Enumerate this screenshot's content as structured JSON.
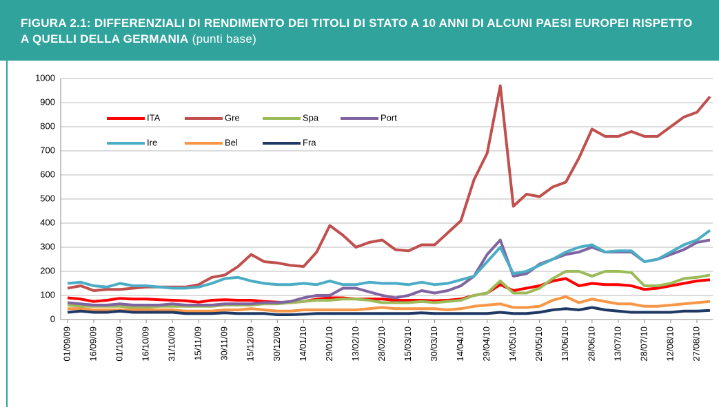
{
  "chart_data": {
    "type": "line",
    "title": "FIGURA 2.1: DIFFERENZIALI DI RENDIMENTO DEI TITOLI DI STATO A 10 ANNI DI ALCUNI PAESI EUROPEI RISPETTO A QUELLI DELLA GERMANIA",
    "subtitle": "(punti base)",
    "categories": [
      "01/09/09",
      null,
      "16/09/09",
      null,
      "01/10/09",
      null,
      "16/10/09",
      null,
      "31/10/09",
      null,
      "15/11/09",
      null,
      "30/11/09",
      null,
      "15/12/09",
      null,
      "30/12/09",
      null,
      "14/01/10",
      null,
      "29/01/10",
      null,
      "13/02/10",
      null,
      "28/02/10",
      null,
      "15/03/10",
      null,
      "30/03/10",
      null,
      "14/04/10",
      null,
      "29/04/10",
      null,
      "14/05/10",
      null,
      "29/05/10",
      null,
      "13/06/10",
      null,
      "28/06/10",
      null,
      "13/07/10",
      null,
      "28/07/10",
      null,
      "12/08/10",
      null,
      "27/08/10",
      null
    ],
    "series": [
      {
        "name": "ITA",
        "color": "#ff0000",
        "values": [
          90,
          85,
          75,
          80,
          88,
          85,
          85,
          82,
          80,
          78,
          72,
          80,
          82,
          80,
          80,
          75,
          72,
          70,
          75,
          85,
          90,
          90,
          85,
          85,
          85,
          80,
          80,
          80,
          78,
          80,
          85,
          100,
          110,
          145,
          120,
          130,
          140,
          160,
          170,
          140,
          150,
          145,
          145,
          140,
          125,
          130,
          140,
          150,
          160,
          165
        ]
      },
      {
        "name": "Gre",
        "color": "#c0504d",
        "values": [
          130,
          140,
          120,
          125,
          125,
          130,
          135,
          135,
          135,
          135,
          145,
          175,
          185,
          220,
          270,
          240,
          235,
          225,
          220,
          280,
          390,
          350,
          300,
          320,
          330,
          290,
          285,
          310,
          310,
          360,
          410,
          580,
          690,
          970,
          470,
          520,
          510,
          550,
          570,
          670,
          790,
          760,
          760,
          780,
          760,
          760,
          800,
          840,
          860,
          925
        ]
      },
      {
        "name": "Spa",
        "color": "#9bbb59",
        "values": [
          60,
          55,
          55,
          55,
          55,
          50,
          50,
          55,
          55,
          55,
          55,
          55,
          60,
          60,
          60,
          65,
          65,
          70,
          75,
          80,
          80,
          85,
          85,
          80,
          70,
          70,
          70,
          75,
          70,
          75,
          80,
          100,
          110,
          160,
          110,
          110,
          130,
          170,
          200,
          200,
          180,
          200,
          200,
          195,
          140,
          140,
          150,
          170,
          175,
          185
        ]
      },
      {
        "name": "Port",
        "color": "#8064a2",
        "values": [
          70,
          65,
          60,
          60,
          65,
          60,
          60,
          60,
          65,
          60,
          60,
          60,
          65,
          65,
          65,
          70,
          70,
          75,
          90,
          100,
          100,
          130,
          130,
          115,
          100,
          90,
          100,
          120,
          110,
          120,
          140,
          180,
          270,
          330,
          180,
          190,
          230,
          250,
          270,
          280,
          300,
          280,
          280,
          280,
          240,
          250,
          270,
          290,
          320,
          330
        ]
      },
      {
        "name": "Ire",
        "color": "#4bacc6",
        "values": [
          150,
          155,
          140,
          135,
          150,
          140,
          140,
          135,
          130,
          130,
          135,
          150,
          170,
          175,
          160,
          150,
          145,
          145,
          150,
          145,
          160,
          145,
          145,
          155,
          150,
          150,
          145,
          155,
          145,
          150,
          165,
          180,
          240,
          300,
          190,
          200,
          225,
          250,
          280,
          300,
          310,
          280,
          285,
          285,
          240,
          250,
          280,
          310,
          330,
          370
        ]
      },
      {
        "name": "Bel",
        "color": "#f79646",
        "values": [
          45,
          45,
          40,
          40,
          40,
          40,
          40,
          40,
          40,
          35,
          35,
          35,
          40,
          40,
          45,
          40,
          35,
          35,
          40,
          40,
          40,
          40,
          40,
          45,
          50,
          45,
          45,
          45,
          45,
          40,
          45,
          55,
          60,
          65,
          50,
          50,
          55,
          80,
          95,
          70,
          85,
          75,
          65,
          65,
          55,
          55,
          60,
          65,
          70,
          75
        ]
      },
      {
        "name": "Fra",
        "color": "#1f3864",
        "values": [
          30,
          35,
          30,
          30,
          35,
          30,
          30,
          30,
          30,
          25,
          25,
          25,
          28,
          25,
          25,
          25,
          20,
          20,
          22,
          25,
          25,
          25,
          25,
          25,
          25,
          25,
          25,
          28,
          25,
          25,
          25,
          25,
          25,
          30,
          25,
          25,
          30,
          40,
          45,
          40,
          50,
          40,
          35,
          30,
          30,
          30,
          30,
          35,
          35,
          38
        ]
      }
    ],
    "ylim": [
      0,
      1000
    ],
    "yticks": [
      0,
      100,
      200,
      300,
      400,
      500,
      600,
      700,
      800,
      900,
      1000
    ],
    "grid": true,
    "legend": "upper left"
  }
}
